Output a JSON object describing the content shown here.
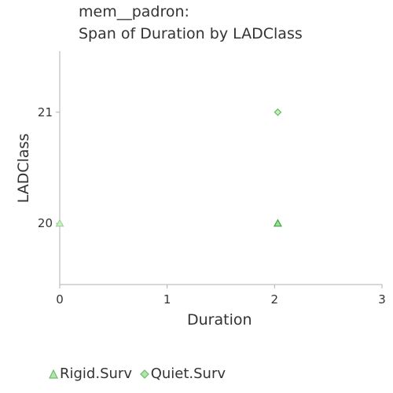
{
  "chart_data": {
    "type": "scatter",
    "title_line1": "mem__padron:",
    "title_line2": "Span of Duration by LADClass",
    "xlabel": "Duration",
    "ylabel": "LADClass",
    "xlim": [
      0,
      3
    ],
    "ylim": [
      19.45,
      21.55
    ],
    "xticks": [
      "0",
      "1",
      "2",
      "3"
    ],
    "yticks": [
      "20",
      "21"
    ],
    "grid": false,
    "legend_position": "bottom",
    "series": [
      {
        "name": "Rigid.Surv",
        "marker": "triangle",
        "color": "#2ca02c",
        "points": [
          {
            "x": 0,
            "y": 20
          },
          {
            "x": 2.03,
            "y": 20
          }
        ]
      },
      {
        "name": "Quiet.Surv",
        "marker": "diamond",
        "color": "#2ca02c",
        "points": [
          {
            "x": 2.03,
            "y": 21
          }
        ]
      }
    ]
  }
}
